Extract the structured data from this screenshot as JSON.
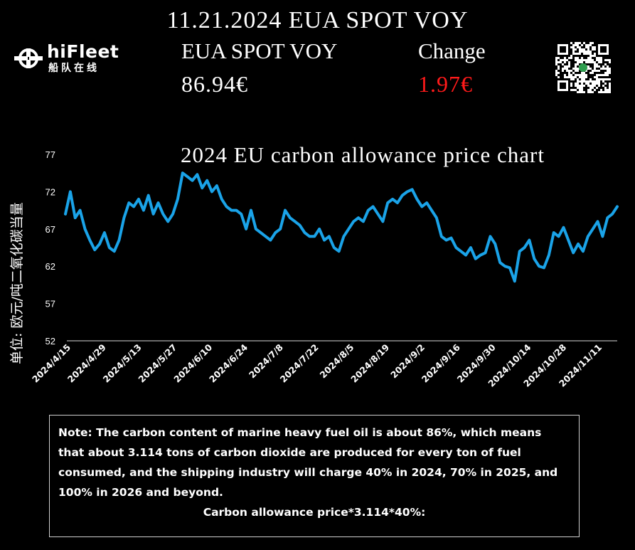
{
  "header": {
    "title": "11.21.2024 EUA SPOT VOY"
  },
  "logo": {
    "name": "hiFleet",
    "subtitle": "船队在线"
  },
  "quote": {
    "price_label": "EUA SPOT VOY",
    "price_value": "86.94€",
    "change_label": "Change",
    "change_value": "1.97€"
  },
  "colors": {
    "background": "#000000",
    "line": "#1aa3e8",
    "change": "#ff1a1a",
    "text": "#ffffff"
  },
  "note": {
    "text": "Note: The carbon content of marine heavy fuel oil is about 86%, which means that about 3.114 tons of carbon dioxide are produced for every ton of fuel consumed, and the shipping industry will charge 40% in 2024, 70% in 2025, and 100% in 2026 and beyond.",
    "formula": "Carbon allowance price*3.114*40%:"
  },
  "chart_data": {
    "type": "line",
    "title": "2024 EU carbon allowance price chart",
    "ylabel": "单位: 欧元/吨二氧化碳当量",
    "xlabel": "",
    "ylim": [
      52,
      77
    ],
    "yticks": [
      52,
      57,
      62,
      67,
      72,
      77
    ],
    "xticks": [
      "2024/4/15",
      "2024/4/29",
      "2024/5/13",
      "2024/5/27",
      "2024/6/10",
      "2024/6/24",
      "2024/7/8",
      "2024/7/22",
      "2024/8/5",
      "2024/8/19",
      "2024/9/2",
      "2024/9/16",
      "2024/9/30",
      "2024/10/14",
      "2024/10/28",
      "2024/11/11"
    ],
    "grid": false,
    "series": [
      {
        "values": [
          69.0,
          72.0,
          68.5,
          69.5,
          67.0,
          65.5,
          64.2,
          65.0,
          66.5,
          64.5,
          64.0,
          65.5,
          68.5,
          70.5,
          70.0,
          71.0,
          69.5,
          71.5,
          69.0,
          70.5,
          69.0,
          68.0,
          69.0,
          71.0,
          74.5,
          74.0,
          73.5,
          74.3,
          72.5,
          73.5,
          72.0,
          72.8,
          71.0,
          70.0,
          69.5,
          69.5,
          69.0,
          67.0,
          69.5,
          67.0,
          66.5,
          66.0,
          65.5,
          66.5,
          67.0,
          69.5,
          68.5,
          68.0,
          67.5,
          66.5,
          66.0,
          66.0,
          67.0,
          65.5,
          66.0,
          64.5,
          64.0,
          66.0,
          67.0,
          68.0,
          68.5,
          68.0,
          69.5,
          70.0,
          69.0,
          68.0,
          70.5,
          71.0,
          70.5,
          71.5,
          72.0,
          72.3,
          71.0,
          70.0,
          70.5,
          69.5,
          68.5,
          66.0,
          65.5,
          65.8,
          64.5,
          64.0,
          63.5,
          64.5,
          63.0,
          63.5,
          63.8,
          66.0,
          65.0,
          62.5,
          62.0,
          61.8,
          60.0,
          64.0,
          64.5,
          65.5,
          63.0,
          62.0,
          61.8,
          63.5,
          66.5,
          66.0,
          67.2,
          65.5,
          63.8,
          65.0,
          64.0,
          66.0,
          67.0,
          68.0,
          66.0,
          68.5,
          69.0,
          70.0
        ]
      }
    ]
  }
}
